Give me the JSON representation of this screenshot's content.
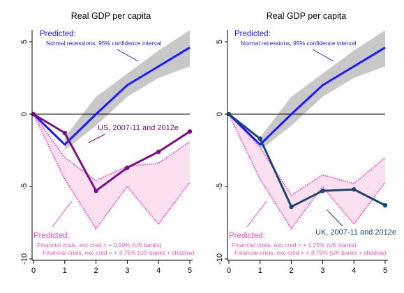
{
  "chart_data": [
    {
      "type": "line",
      "title": "Real GDP per capita",
      "xlim": [
        0,
        5
      ],
      "ylim": [
        -10,
        5
      ],
      "xticks": [
        0,
        1,
        2,
        3,
        4,
        5
      ],
      "yticks": [
        -10,
        -5,
        0,
        5
      ],
      "grid": false,
      "zero_line": true,
      "colors": {
        "predicted_normal": "#1a1aff",
        "band_normal": "#c8c8c8",
        "country": "#7a0f80",
        "crisis": "#ee55bb",
        "band_crisis": "#fbe1ef",
        "zero": "#000000"
      },
      "predicted_normal": {
        "x": [
          0,
          1,
          2,
          3,
          4,
          5
        ],
        "y": [
          0,
          -2.1,
          0,
          2.0,
          3.3,
          4.6
        ],
        "band_upper": [
          0,
          -1.6,
          1.2,
          2.8,
          4.4,
          5.8
        ],
        "band_lower": [
          0,
          -2.5,
          -0.8,
          1.2,
          2.5,
          3.3
        ]
      },
      "crisis_paths": {
        "x": [
          0,
          1,
          2,
          3,
          4,
          5
        ],
        "upper": [
          0,
          -3.0,
          -4.6,
          -3.6,
          -3.4,
          -1.9
        ],
        "lower": [
          0,
          -4.5,
          -7.9,
          -5.0,
          -7.6,
          -4.7
        ]
      },
      "country_series": {
        "name": "US, 2007-11 and 2012e",
        "x": [
          0,
          1,
          2,
          3,
          4,
          5
        ],
        "y": [
          0,
          -1.3,
          -5.3,
          -3.7,
          -2.6,
          -1.2
        ]
      },
      "annotations": {
        "predicted_title": "Predicted:",
        "predicted_sub": "Normal recessions, 95% confidence interval",
        "crisis_title": "Predicted:",
        "crisis_line1": "Financial crisis, exc cred = + 0.50% (US banks)",
        "crisis_line2": "Financial crisis, exc cred = + 3.75% (US banks + shadow)"
      }
    },
    {
      "type": "line",
      "title": "Real GDP per capita",
      "xlim": [
        0,
        5
      ],
      "ylim": [
        -10,
        5
      ],
      "xticks": [
        0,
        1,
        2,
        3,
        4,
        5
      ],
      "yticks": [
        -10,
        -5,
        0,
        5
      ],
      "grid": false,
      "zero_line": true,
      "colors": {
        "predicted_normal": "#1a1aff",
        "band_normal": "#c8c8c8",
        "country": "#1b4670",
        "crisis": "#ee55bb",
        "band_crisis": "#fbe1ef",
        "zero": "#000000"
      },
      "predicted_normal": {
        "x": [
          0,
          1,
          2,
          3,
          4,
          5
        ],
        "y": [
          0,
          -2.1,
          0,
          2.0,
          3.3,
          4.6
        ],
        "band_upper": [
          0,
          -1.6,
          1.2,
          2.8,
          4.4,
          5.8
        ],
        "band_lower": [
          0,
          -2.5,
          -0.8,
          1.2,
          2.5,
          3.3
        ]
      },
      "crisis_paths": {
        "x": [
          0,
          1,
          2,
          3,
          4,
          5
        ],
        "upper": [
          0,
          -2.3,
          -5.6,
          -4.2,
          -4.8,
          -3.0
        ],
        "lower": [
          0,
          -4.5,
          -7.9,
          -5.0,
          -7.6,
          -4.7
        ]
      },
      "country_series": {
        "name": "UK, 2007-11 and 2012e",
        "x": [
          0,
          1,
          2,
          3,
          4,
          5
        ],
        "y": [
          0,
          -1.7,
          -6.4,
          -5.3,
          -5.2,
          -6.3
        ]
      },
      "annotations": {
        "predicted_title": "Predicted:",
        "predicted_sub": "Normal recessions, 95% confidence interval",
        "crisis_title": "Predicted:",
        "crisis_line1": "Financial crisis, exc cred = + 1.75% (UK banks)",
        "crisis_line2": "Financial crisis, exc cred = + 3.75% (UK banks + shadow)"
      }
    }
  ]
}
